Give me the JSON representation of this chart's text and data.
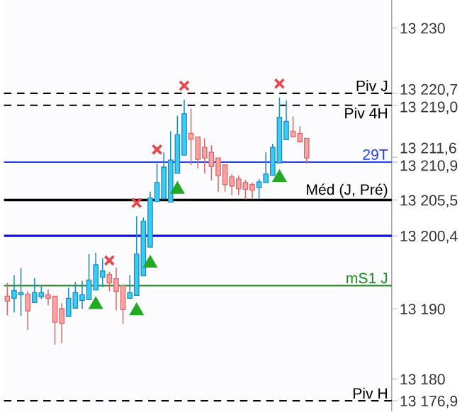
{
  "chart_data": {
    "type": "candlestick",
    "categories": [
      null,
      null,
      null,
      null,
      null,
      null,
      null,
      null,
      null,
      null,
      null,
      null,
      null,
      null,
      null,
      null,
      null,
      null,
      null,
      null,
      null,
      null,
      null,
      null,
      null,
      null,
      null,
      null,
      null,
      null,
      null,
      null,
      null,
      null,
      null,
      null,
      null,
      null,
      null,
      null,
      null,
      null,
      null,
      null,
      null,
      null,
      null,
      null,
      null,
      null,
      null,
      null,
      null,
      null,
      null,
      null,
      null
    ],
    "ohlc": [
      [
        13191.8,
        13193.7,
        13189.1,
        13191.1
      ],
      [
        13191.5,
        13194.8,
        13189.5,
        13192.6
      ],
      [
        13192.0,
        13195.8,
        13189.0,
        13192.3
      ],
      [
        13192.1,
        13192.5,
        13187.0,
        13189.7
      ],
      [
        13190.9,
        13194.4,
        13190.9,
        13192.3
      ],
      [
        13191.7,
        13193.2,
        13191.4,
        13192.3
      ],
      [
        13192.0,
        13192.8,
        13190.5,
        13191.5
      ],
      [
        13191.8,
        13191.8,
        13184.9,
        13188.1
      ],
      [
        13190.0,
        13190.8,
        13185.1,
        13187.9
      ],
      [
        13188.9,
        13193.0,
        13188.9,
        13191.5
      ],
      [
        13190.1,
        13193.8,
        13190.1,
        13192.3
      ],
      [
        13191.2,
        13194.0,
        13190.0,
        13192.0
      ],
      [
        13191.3,
        13197.8,
        13191.3,
        13194.1
      ],
      [
        13192.7,
        13198.0,
        13192.7,
        13196.3
      ],
      [
        13194.5,
        13197.2,
        13193.1,
        13195.4
      ],
      [
        13194.9,
        13195.3,
        13192.5,
        13193.7
      ],
      [
        13194.3,
        13195.9,
        13189.8,
        13192.5
      ],
      [
        13193.3,
        13193.3,
        13187.9,
        13189.9
      ],
      [
        13191.5,
        13194.8,
        13191.5,
        13192.3
      ],
      [
        13191.9,
        13203.2,
        13191.9,
        13197.8
      ],
      [
        13194.7,
        13203.0,
        13194.7,
        13202.5
      ],
      [
        13198.8,
        13206.7,
        13198.8,
        13205.8
      ],
      [
        13205.3,
        13210.7,
        13205.3,
        13208.0
      ],
      [
        13205.7,
        13212.3,
        13205.7,
        13210.2
      ],
      [
        13205.2,
        13215.3,
        13205.2,
        13211.2
      ],
      [
        13209.3,
        13217.5,
        13209.3,
        13214.8
      ],
      [
        13211.9,
        13219.8,
        13211.9,
        13217.8
      ],
      [
        13215.0,
        13218.5,
        13210.5,
        13214.2
      ],
      [
        13214.5,
        13214.5,
        13210.0,
        13211.3
      ],
      [
        13213.0,
        13214.3,
        13209.3,
        13211.5
      ],
      [
        13212.3,
        13213.3,
        13208.3,
        13210.3
      ],
      [
        13211.5,
        13211.5,
        13206.7,
        13209.0
      ],
      [
        13210.5,
        13210.5,
        13206.7,
        13207.7
      ],
      [
        13208.8,
        13209.2,
        13206.2,
        13207.5
      ],
      [
        13208.5,
        13209.0,
        13206.2,
        13207.1
      ],
      [
        13208.0,
        13208.4,
        13205.6,
        13207.0
      ],
      [
        13207.7,
        13208.0,
        13205.7,
        13206.9
      ],
      [
        13207.3,
        13208.5,
        13205.7,
        13208.1
      ],
      [
        13208.0,
        13212.3,
        13208.0,
        13209.2
      ],
      [
        13209.0,
        13213.5,
        13209.0,
        13213.0
      ],
      [
        13210.8,
        13220.1,
        13210.8,
        13217.3
      ],
      [
        13214.1,
        13219.7,
        13214.1,
        13216.7
      ],
      [
        13215.3,
        13217.4,
        13214.5,
        13214.5
      ],
      [
        13215.0,
        13216.0,
        13213.8,
        13213.8
      ],
      [
        13214.3,
        13214.3,
        13210.7,
        13211.5
      ],
      null,
      null,
      null,
      null,
      null,
      null,
      null,
      null,
      null,
      null,
      null,
      null
    ],
    "series": [
      {
        "type": "scatter",
        "marker": "cross",
        "color": "#e8474c",
        "values": [
          null,
          null,
          null,
          null,
          null,
          null,
          null,
          null,
          null,
          null,
          null,
          null,
          null,
          null,
          null,
          13196.9,
          null,
          null,
          null,
          13205.1,
          null,
          null,
          13212.7,
          null,
          null,
          null,
          13221.8,
          null,
          null,
          null,
          null,
          null,
          null,
          null,
          null,
          null,
          null,
          null,
          null,
          null,
          13222.1,
          null,
          null,
          null,
          null,
          null,
          null,
          null,
          null,
          null,
          null,
          null,
          null,
          null,
          null,
          null,
          null
        ]
      },
      {
        "type": "scatter",
        "marker": "triangle",
        "color": "#22aa22",
        "values": [
          null,
          null,
          null,
          null,
          null,
          null,
          null,
          null,
          null,
          null,
          null,
          null,
          null,
          13190.6,
          null,
          null,
          null,
          null,
          null,
          13189.7,
          null,
          13196.5,
          null,
          null,
          null,
          13207.0,
          null,
          null,
          null,
          null,
          null,
          null,
          null,
          null,
          null,
          null,
          null,
          null,
          null,
          null,
          13208.7,
          null,
          null,
          null,
          null,
          null,
          null,
          null,
          null,
          null,
          null,
          null,
          null,
          null,
          null,
          null,
          null
        ]
      }
    ],
    "ylim": [
      13175.4,
      13234
    ],
    "yticks": [
      {
        "value": 13176.9,
        "label": "13 176,9"
      },
      {
        "value": 13180,
        "label": "13 180"
      },
      {
        "value": 13190,
        "label": "13 190"
      },
      {
        "value": 13200.4,
        "label": "13 200,4"
      },
      {
        "value": 13205.5,
        "label": "13 205,5"
      },
      {
        "value": 13210.9,
        "label": "13 210,9"
      },
      {
        "value": 13211.6,
        "label": "13 211,6"
      },
      {
        "value": 13219.0,
        "label": "13 219,0"
      },
      {
        "value": 13220.7,
        "label": "13 220,7"
      },
      {
        "value": 13230,
        "label": "13 230"
      }
    ],
    "ref_lines": [
      {
        "axis": "y",
        "value": 13220.7,
        "label": "Piv J",
        "color": "#000000",
        "line_style": "dashed"
      },
      {
        "axis": "y",
        "value": 13219.0,
        "label": "Piv 4H",
        "color": "#000000",
        "line_style": "dashed"
      },
      {
        "axis": "y",
        "value": 13210.9,
        "label": "29T",
        "color": "#1f3fff"
      },
      {
        "axis": "y",
        "value": 13205.5,
        "label": "Méd (J, Pré)",
        "color": "#000000"
      },
      {
        "axis": "y",
        "value": 13200.4,
        "color": "#1010e0"
      },
      {
        "axis": "y",
        "value": 13193.3,
        "label": "mS1 J",
        "color": "#1a8a1a"
      },
      {
        "axis": "y",
        "value": 13176.9,
        "label": "Piv H",
        "color": "#000000",
        "line_style": "dashed"
      }
    ]
  }
}
